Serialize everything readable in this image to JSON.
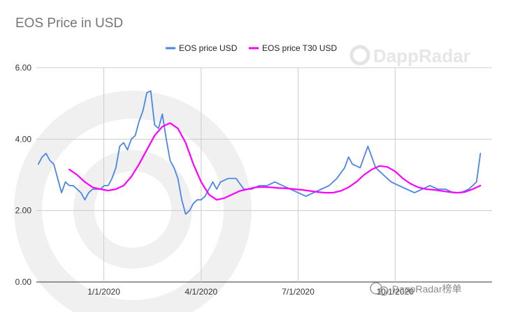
{
  "chart_data": {
    "type": "line",
    "title": "EOS Price in USD",
    "xlabel": "",
    "ylabel": "",
    "ylim": [
      0,
      6
    ],
    "y_ticks": [
      "0.00",
      "2.00",
      "4.00",
      "6.00"
    ],
    "y_tick_values": [
      0,
      2,
      4,
      6
    ],
    "x_ticks": [
      "1/1/2020",
      "4/1/2020",
      "7/1/2020",
      "10/1/2020"
    ],
    "x_tick_values": [
      2019.999,
      2020.25,
      2020.5,
      2020.75
    ],
    "xlim": [
      2019.825,
      2021.0
    ],
    "grid": "vertical and horizontal",
    "legend_position": "top",
    "series": [
      {
        "name": "EOS price USD",
        "color": "#4a86e8",
        "x": [
          2019.83,
          2019.84,
          2019.85,
          2019.86,
          2019.87,
          2019.88,
          2019.89,
          2019.9,
          2019.91,
          2019.92,
          2019.93,
          2019.94,
          2019.95,
          2019.96,
          2019.97,
          2019.98,
          2019.99,
          2020.0,
          2020.01,
          2020.02,
          2020.03,
          2020.04,
          2020.05,
          2020.06,
          2020.07,
          2020.08,
          2020.09,
          2020.1,
          2020.11,
          2020.12,
          2020.13,
          2020.14,
          2020.15,
          2020.16,
          2020.17,
          2020.18,
          2020.19,
          2020.2,
          2020.21,
          2020.22,
          2020.23,
          2020.24,
          2020.25,
          2020.26,
          2020.27,
          2020.28,
          2020.29,
          2020.3,
          2020.32,
          2020.34,
          2020.36,
          2020.38,
          2020.4,
          2020.42,
          2020.44,
          2020.46,
          2020.48,
          2020.5,
          2020.52,
          2020.54,
          2020.56,
          2020.58,
          2020.6,
          2020.62,
          2020.63,
          2020.64,
          2020.66,
          2020.68,
          2020.7,
          2020.72,
          2020.74,
          2020.76,
          2020.78,
          2020.8,
          2020.82,
          2020.84,
          2020.86,
          2020.88,
          2020.9,
          2020.92,
          2020.94,
          2020.95,
          2020.96,
          2020.97
        ],
        "values": [
          3.3,
          3.5,
          3.6,
          3.4,
          3.3,
          2.9,
          2.5,
          2.8,
          2.7,
          2.7,
          2.6,
          2.5,
          2.3,
          2.5,
          2.6,
          2.6,
          2.6,
          2.7,
          2.7,
          2.9,
          3.2,
          3.8,
          3.9,
          3.7,
          4.0,
          4.1,
          4.5,
          4.8,
          5.3,
          5.35,
          4.4,
          4.3,
          4.7,
          4.0,
          3.4,
          3.2,
          2.9,
          2.3,
          1.9,
          2.0,
          2.2,
          2.3,
          2.3,
          2.4,
          2.6,
          2.8,
          2.6,
          2.8,
          2.9,
          2.9,
          2.6,
          2.6,
          2.7,
          2.7,
          2.8,
          2.7,
          2.6,
          2.5,
          2.4,
          2.5,
          2.6,
          2.7,
          2.9,
          3.2,
          3.5,
          3.3,
          3.2,
          3.8,
          3.2,
          3.0,
          2.8,
          2.7,
          2.6,
          2.5,
          2.6,
          2.7,
          2.6,
          2.6,
          2.5,
          2.5,
          2.6,
          2.7,
          2.8,
          3.6
        ]
      },
      {
        "name": "EOS price T30 USD",
        "color": "#ff00ff",
        "x": [
          2019.91,
          2019.93,
          2019.95,
          2019.97,
          2019.99,
          2020.01,
          2020.03,
          2020.05,
          2020.07,
          2020.09,
          2020.11,
          2020.13,
          2020.15,
          2020.17,
          2020.19,
          2020.21,
          2020.23,
          2020.25,
          2020.27,
          2020.29,
          2020.31,
          2020.33,
          2020.35,
          2020.37,
          2020.39,
          2020.41,
          2020.43,
          2020.45,
          2020.47,
          2020.49,
          2020.51,
          2020.53,
          2020.55,
          2020.57,
          2020.59,
          2020.61,
          2020.63,
          2020.65,
          2020.67,
          2020.69,
          2020.71,
          2020.73,
          2020.75,
          2020.77,
          2020.79,
          2020.81,
          2020.83,
          2020.85,
          2020.87,
          2020.89,
          2020.91,
          2020.93,
          2020.95,
          2020.97
        ],
        "values": [
          3.15,
          3.0,
          2.8,
          2.65,
          2.6,
          2.56,
          2.6,
          2.7,
          2.95,
          3.3,
          3.7,
          4.1,
          4.35,
          4.45,
          4.3,
          3.9,
          3.3,
          2.8,
          2.45,
          2.3,
          2.35,
          2.45,
          2.55,
          2.6,
          2.65,
          2.66,
          2.65,
          2.63,
          2.62,
          2.6,
          2.58,
          2.55,
          2.52,
          2.5,
          2.5,
          2.55,
          2.65,
          2.8,
          3.0,
          3.15,
          3.25,
          3.22,
          3.1,
          2.9,
          2.75,
          2.65,
          2.6,
          2.58,
          2.55,
          2.52,
          2.5,
          2.52,
          2.6,
          2.7
        ]
      }
    ]
  },
  "watermark": {
    "brand_text": "DappRadar",
    "footer_text": "DappRadar榜单"
  }
}
